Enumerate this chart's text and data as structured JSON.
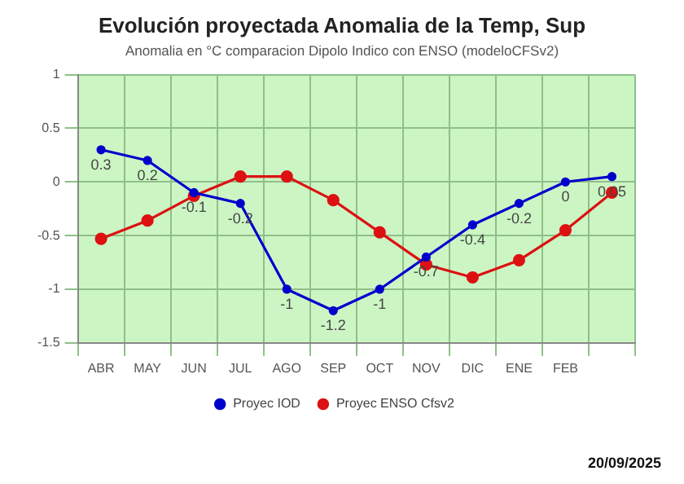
{
  "chart_data": {
    "type": "line",
    "title": "Evolución proyectada Anomalia de la Temp, Sup",
    "subtitle": "Anomalia en °C comparacion Dipolo Indico con ENSO (modeloCFSv2)",
    "categories": [
      "ABR",
      "MAY",
      "JUN",
      "JUL",
      "AGO",
      "SEP",
      "OCT",
      "NOV",
      "DIC",
      "ENE",
      "FEB",
      null
    ],
    "series": [
      {
        "name": "Proyec IOD",
        "color": "#0000cc",
        "values": [
          0.3,
          0.2,
          -0.1,
          -0.2,
          -1,
          -1.2,
          -1,
          -0.7,
          -0.4,
          -0.2,
          0,
          0.05
        ],
        "value_labels": [
          "0.3",
          "0.2",
          "-0.1",
          "-0.2",
          "-1",
          "-1.2",
          "-1",
          "-0.7",
          "-0.4",
          "-0.2",
          "0",
          "0.05"
        ]
      },
      {
        "name": "Proyec ENSO Cfsv2",
        "color": "#dd1111",
        "values": [
          -0.53,
          -0.36,
          -0.13,
          0.05,
          0.05,
          -0.17,
          -0.47,
          -0.77,
          -0.89,
          -0.73,
          -0.45,
          -0.1
        ]
      }
    ],
    "ylim": [
      -1.5,
      1
    ],
    "yticks": [
      -1.5,
      -1,
      -0.5,
      0,
      0.5,
      1
    ],
    "grid": true,
    "legend": "bottom",
    "marker": "circle",
    "line_style": "solid",
    "annotations": [
      "20/09/2025"
    ]
  }
}
